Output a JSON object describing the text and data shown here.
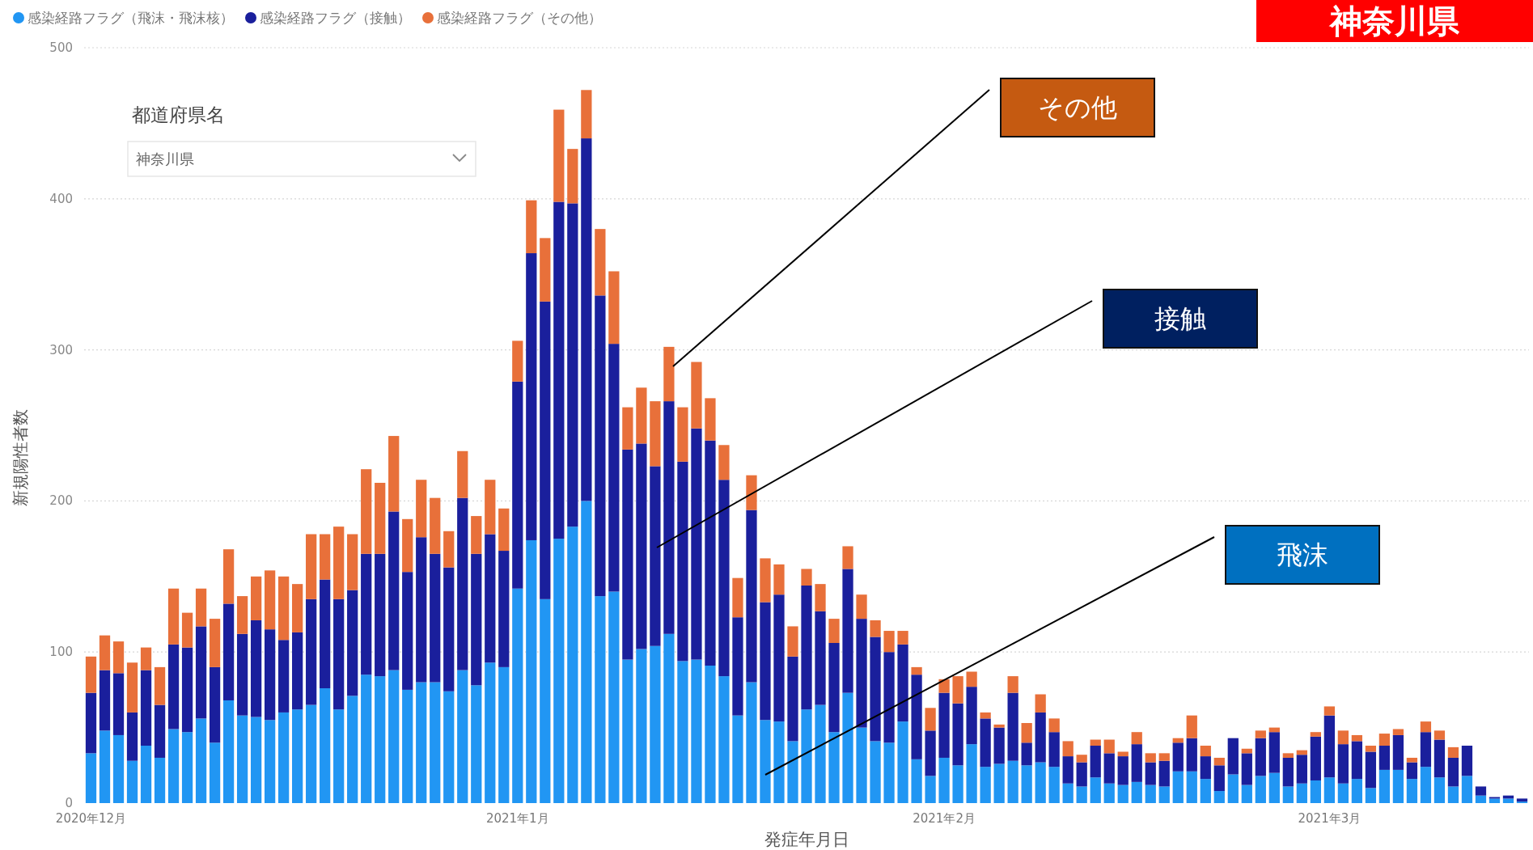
{
  "chart_data": {
    "type": "bar",
    "stacked": true,
    "title": "神奈川県",
    "xlabel": "発症年月日",
    "ylabel": "新規陽性者数",
    "x": [
      "2020-12-01",
      "2020-12-02",
      "2020-12-03",
      "2020-12-04",
      "2020-12-05",
      "2020-12-06",
      "2020-12-07",
      "2020-12-08",
      "2020-12-09",
      "2020-12-10",
      "2020-12-11",
      "2020-12-12",
      "2020-12-13",
      "2020-12-14",
      "2020-12-15",
      "2020-12-16",
      "2020-12-17",
      "2020-12-18",
      "2020-12-19",
      "2020-12-20",
      "2020-12-21",
      "2020-12-22",
      "2020-12-23",
      "2020-12-24",
      "2020-12-25",
      "2020-12-26",
      "2020-12-27",
      "2020-12-28",
      "2020-12-29",
      "2020-12-30",
      "2020-12-31",
      "2021-01-01",
      "2021-01-02",
      "2021-01-03",
      "2021-01-04",
      "2021-01-05",
      "2021-01-06",
      "2021-01-07",
      "2021-01-08",
      "2021-01-09",
      "2021-01-10",
      "2021-01-11",
      "2021-01-12",
      "2021-01-13",
      "2021-01-14",
      "2021-01-15",
      "2021-01-16",
      "2021-01-17",
      "2021-01-18",
      "2021-01-19",
      "2021-01-20",
      "2021-01-21",
      "2021-01-22",
      "2021-01-23",
      "2021-01-24",
      "2021-01-25",
      "2021-01-26",
      "2021-01-27",
      "2021-01-28",
      "2021-01-29",
      "2021-01-30",
      "2021-01-31",
      "2021-02-01",
      "2021-02-02",
      "2021-02-03",
      "2021-02-04",
      "2021-02-05",
      "2021-02-06",
      "2021-02-07",
      "2021-02-08",
      "2021-02-09",
      "2021-02-10",
      "2021-02-11",
      "2021-02-12",
      "2021-02-13",
      "2021-02-14",
      "2021-02-15",
      "2021-02-16",
      "2021-02-17",
      "2021-02-18",
      "2021-02-19",
      "2021-02-20",
      "2021-02-21",
      "2021-02-22",
      "2021-02-23",
      "2021-02-24",
      "2021-02-25",
      "2021-02-26",
      "2021-02-27",
      "2021-02-28",
      "2021-03-01",
      "2021-03-02",
      "2021-03-03",
      "2021-03-04",
      "2021-03-05",
      "2021-03-06",
      "2021-03-07",
      "2021-03-08",
      "2021-03-09",
      "2021-03-10",
      "2021-03-11",
      "2021-03-12",
      "2021-03-13",
      "2021-03-14",
      "2021-03-15"
    ],
    "series": [
      {
        "name": "感染経路フラグ（飛沫・飛沫核）",
        "color": "#2196f3",
        "values": [
          33,
          48,
          45,
          28,
          38,
          30,
          49,
          47,
          56,
          40,
          68,
          58,
          57,
          55,
          60,
          62,
          65,
          76,
          62,
          71,
          85,
          84,
          88,
          75,
          80,
          80,
          74,
          88,
          78,
          93,
          90,
          142,
          174,
          135,
          175,
          183,
          200,
          137,
          140,
          95,
          102,
          104,
          112,
          94,
          95,
          91,
          84,
          58,
          80,
          55,
          54,
          41,
          62,
          65,
          47,
          73,
          50,
          41,
          40,
          54,
          29,
          18,
          30,
          25,
          39,
          24,
          26,
          28,
          25,
          27,
          24,
          13,
          11,
          17,
          13,
          12,
          14,
          12,
          11,
          21,
          21,
          16,
          8,
          19,
          12,
          18,
          20,
          11,
          13,
          15,
          17,
          13,
          16,
          10,
          22,
          22,
          16,
          24,
          17,
          11,
          18,
          5,
          3,
          3,
          1
        ]
      },
      {
        "name": "感染経路フラグ（接触）",
        "color": "#1a1f9c",
        "values": [
          40,
          40,
          41,
          32,
          50,
          35,
          56,
          56,
          61,
          50,
          64,
          54,
          64,
          60,
          48,
          51,
          70,
          72,
          73,
          70,
          80,
          81,
          105,
          78,
          96,
          85,
          82,
          114,
          87,
          85,
          77,
          137,
          190,
          197,
          223,
          214,
          240,
          199,
          164,
          139,
          136,
          119,
          154,
          132,
          153,
          149,
          130,
          65,
          114,
          78,
          84,
          56,
          82,
          62,
          59,
          82,
          72,
          69,
          60,
          51,
          56,
          30,
          43,
          41,
          38,
          32,
          24,
          45,
          15,
          33,
          23,
          18,
          16,
          21,
          20,
          19,
          25,
          15,
          17,
          19,
          22,
          15,
          17,
          24,
          21,
          25,
          27,
          19,
          19,
          29,
          41,
          26,
          25,
          24,
          16,
          23,
          11,
          23,
          25,
          19,
          20,
          6,
          1,
          2,
          2
        ]
      },
      {
        "name": "感染経路フラグ（その他）",
        "color": "#e8703a",
        "values": [
          24,
          23,
          21,
          33,
          15,
          25,
          37,
          23,
          25,
          32,
          36,
          25,
          29,
          39,
          42,
          32,
          43,
          30,
          48,
          37,
          56,
          47,
          50,
          35,
          38,
          37,
          24,
          31,
          25,
          36,
          28,
          27,
          35,
          42,
          61,
          36,
          32,
          44,
          48,
          28,
          37,
          43,
          36,
          36,
          44,
          28,
          23,
          26,
          23,
          29,
          20,
          20,
          11,
          18,
          16,
          15,
          16,
          11,
          14,
          9,
          5,
          15,
          9,
          18,
          10,
          4,
          2,
          11,
          13,
          12,
          9,
          10,
          5,
          4,
          9,
          3,
          8,
          6,
          5,
          3,
          15,
          7,
          5,
          0,
          3,
          5,
          3,
          3,
          3,
          3,
          6,
          9,
          4,
          4,
          8,
          4,
          3,
          7,
          6,
          7,
          0,
          0,
          0,
          0,
          0
        ]
      }
    ],
    "xlim": [
      "2020-11-30T12:00",
      "2021-03-15T12:00"
    ],
    "xticks": [
      {
        "value": "2020-12-01",
        "label": "2020年12月"
      },
      {
        "value": "2021-01-01",
        "label": "2021年1月"
      },
      {
        "value": "2021-02-01",
        "label": "2021年2月"
      },
      {
        "value": "2021-03-01",
        "label": "2021年3月"
      }
    ],
    "ylim": [
      0,
      500
    ],
    "yticks": [
      0,
      100,
      200,
      300,
      400,
      500
    ],
    "grid": "y",
    "legend": "top left",
    "annotations": [
      "都道府県名",
      "神奈川県",
      "その他",
      "接触",
      "飛沫"
    ]
  }
}
